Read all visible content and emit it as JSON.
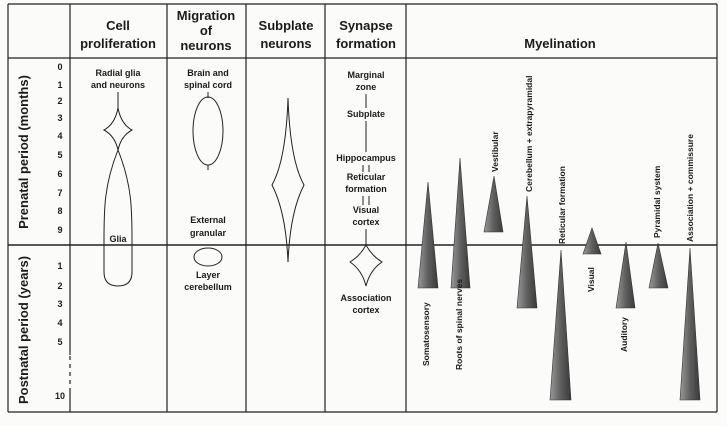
{
  "headers": {
    "cell_proliferation": [
      "Cell",
      "proliferation"
    ],
    "migration": [
      "Migration",
      "of",
      "neurons"
    ],
    "subplate": [
      "Subplate",
      "neurons"
    ],
    "synapse": [
      "Synapse",
      "formation"
    ],
    "myelination": "Myelination"
  },
  "periods": {
    "prenatal": "Prenatal period (months)",
    "postnatal": "Postnatal period (years)"
  },
  "prenatal_ticks": [
    "0",
    "1",
    "2",
    "3",
    "4",
    "5",
    "6",
    "7",
    "8",
    "9"
  ],
  "postnatal_ticks": [
    "1",
    "2",
    "3",
    "4",
    "5",
    "10"
  ],
  "cell_proliferation_labels": {
    "radial": [
      "Radial glia",
      "and neurons"
    ],
    "glia": "Glia"
  },
  "migration_labels": {
    "brain": [
      "Brain and",
      "spinal cord"
    ],
    "external": [
      "External",
      "granular"
    ],
    "layer": [
      "Layer",
      "cerebellum"
    ]
  },
  "synapse_labels": {
    "marginal": [
      "Marginal",
      "zone"
    ],
    "subplate": "Subplate",
    "hippocampus": "Hippocampus",
    "reticular": [
      "Reticular",
      "formation"
    ],
    "visual": [
      "Visual",
      "cortex"
    ],
    "association": [
      "Association",
      "cortex"
    ]
  },
  "myelination_tracts": [
    "Somatosensory",
    "Roots of spinal nerves",
    "Vestibular",
    "Cerebellum + extrapyramidal",
    "Reticular formation",
    "Visual",
    "Auditory",
    "Pyramidal system",
    "Association + commissure"
  ]
}
